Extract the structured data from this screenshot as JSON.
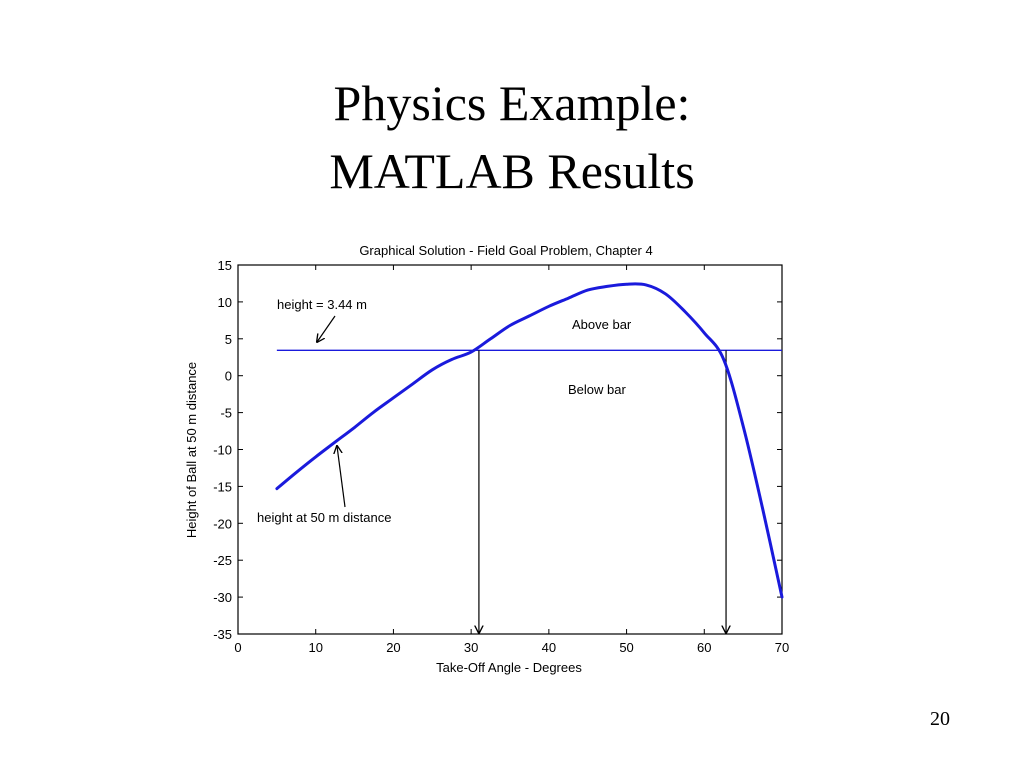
{
  "slide": {
    "title_line1": "Physics Example:",
    "title_line2": "MATLAB Results",
    "page_number": "20"
  },
  "chart_data": {
    "type": "line",
    "title": "Graphical Solution - Field Goal Problem, Chapter 4",
    "xlabel": "Take-Off Angle - Degrees",
    "ylabel": "Height of Ball at 50 m distance",
    "xlim": [
      0,
      70
    ],
    "ylim": [
      -35,
      15
    ],
    "xticks": [
      0,
      10,
      20,
      30,
      40,
      50,
      60,
      70
    ],
    "yticks": [
      15,
      10,
      5,
      0,
      -5,
      -10,
      -15,
      -20,
      -25,
      -30,
      -35
    ],
    "grid": false,
    "colors": {
      "curve": "#1a1adc",
      "bar": "#1a1adc",
      "arrows": "#000000"
    },
    "series": [
      {
        "x": [
          5,
          7.5,
          10,
          12.5,
          15,
          17.5,
          20,
          22.5,
          25,
          27.5,
          30,
          32.5,
          35,
          37.5,
          40,
          42.5,
          45,
          47.5,
          50,
          52.5,
          55,
          57.5,
          60,
          62.5,
          65,
          67.5,
          70
        ],
        "y": [
          -15.3,
          -13.1,
          -11.0,
          -9.0,
          -7.0,
          -4.9,
          -3.0,
          -1.1,
          0.8,
          2.2,
          3.2,
          5.0,
          6.8,
          8.1,
          9.4,
          10.5,
          11.6,
          12.1,
          12.4,
          12.3,
          11.1,
          8.7,
          5.8,
          2.2,
          -6.8,
          -18.0,
          -30.0
        ]
      }
    ],
    "bar_height": 3.44,
    "intersections": [
      31.0,
      62.8
    ],
    "annotations": {
      "height_label": "height = 3.44 m",
      "above": "Above bar",
      "below": "Below bar",
      "curve_label": "height at 50 m distance"
    }
  }
}
